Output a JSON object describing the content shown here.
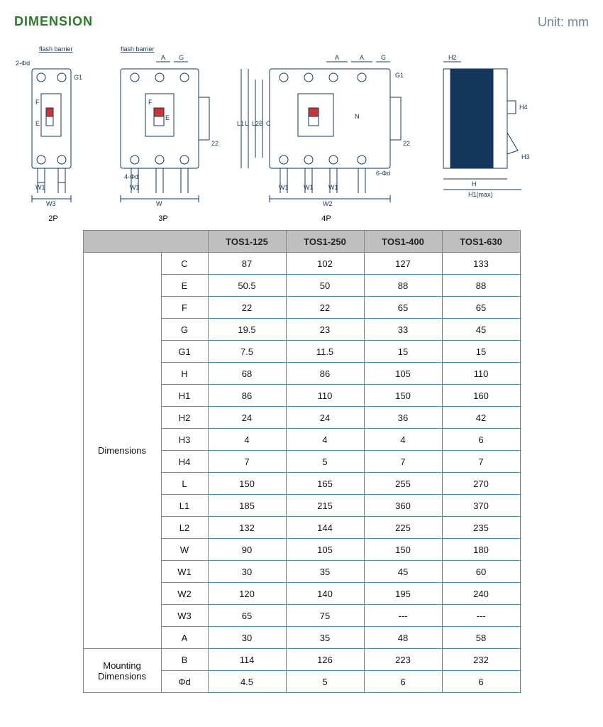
{
  "title": "DIMENSION",
  "unit_label": "Unit: mm",
  "diagram_labels": {
    "d1": "2P",
    "d2": "3P",
    "d3": "4P",
    "flash_barrier": "flash barrier",
    "l_2phid": "2-Φd",
    "l_4phid": "4-Φd",
    "l_6phid": "6-Φd",
    "F": "F",
    "E": "E",
    "W1": "W1",
    "W3": "W3",
    "A": "A",
    "G": "G",
    "G1": "G1",
    "W": "W",
    "C": "C",
    "B": "B",
    "L": "L",
    "L1": "L1",
    "L2": "L2",
    "N": "N",
    "W2": "W2",
    "l22": "22",
    "H": "H",
    "H1": "H1(max)",
    "H2": "H2",
    "H3": "H3",
    "H4": "H4"
  },
  "table": {
    "headers": [
      "",
      "TOS1-125",
      "TOS1-250",
      "TOS1-400",
      "TOS1-630"
    ],
    "sections": [
      {
        "name": "Dimensions",
        "rows": [
          {
            "k": "C",
            "v": [
              "87",
              "102",
              "127",
              "133"
            ]
          },
          {
            "k": "E",
            "v": [
              "50.5",
              "50",
              "88",
              "88"
            ]
          },
          {
            "k": "F",
            "v": [
              "22",
              "22",
              "65",
              "65"
            ]
          },
          {
            "k": "G",
            "v": [
              "19.5",
              "23",
              "33",
              "45"
            ]
          },
          {
            "k": "G1",
            "v": [
              "7.5",
              "11.5",
              "15",
              "15"
            ]
          },
          {
            "k": "H",
            "v": [
              "68",
              "86",
              "105",
              "110"
            ]
          },
          {
            "k": "H1",
            "v": [
              "86",
              "110",
              "150",
              "160"
            ]
          },
          {
            "k": "H2",
            "v": [
              "24",
              "24",
              "36",
              "42"
            ]
          },
          {
            "k": "H3",
            "v": [
              "4",
              "4",
              "4",
              "6"
            ]
          },
          {
            "k": "H4",
            "v": [
              "7",
              "5",
              "7",
              "7"
            ]
          },
          {
            "k": "L",
            "v": [
              "150",
              "165",
              "255",
              "270"
            ]
          },
          {
            "k": "L1",
            "v": [
              "185",
              "215",
              "360",
              "370"
            ]
          },
          {
            "k": "L2",
            "v": [
              "132",
              "144",
              "225",
              "235"
            ]
          },
          {
            "k": "W",
            "v": [
              "90",
              "105",
              "150",
              "180"
            ]
          },
          {
            "k": "W1",
            "v": [
              "30",
              "35",
              "45",
              "60"
            ]
          },
          {
            "k": "W2",
            "v": [
              "120",
              "140",
              "195",
              "240"
            ]
          },
          {
            "k": "W3",
            "v": [
              "65",
              "75",
              "---",
              "---"
            ]
          },
          {
            "k": "A",
            "v": [
              "30",
              "35",
              "48",
              "58"
            ]
          }
        ]
      },
      {
        "name": "Mounting Dimensions",
        "rows": [
          {
            "k": "B",
            "v": [
              "114",
              "126",
              "223",
              "232"
            ]
          },
          {
            "k": "Φd",
            "v": [
              "4.5",
              "5",
              "6",
              "6"
            ]
          }
        ]
      }
    ]
  },
  "colors": {
    "title": "#2a7a2a",
    "unit": "#6b8a9c",
    "border": "#1f9dd9",
    "head_bg": "#bfbfbf",
    "line": "#14365d"
  }
}
